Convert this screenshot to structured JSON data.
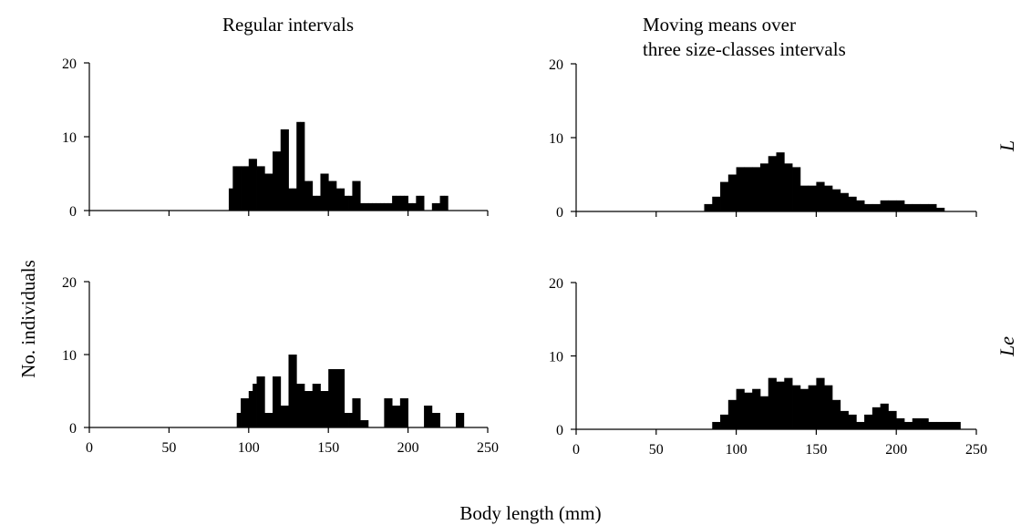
{
  "titles": {
    "left": "Regular intervals",
    "right_line1": "Moving means over",
    "right_line2": "three size-classes intervals"
  },
  "ylabel": "No. individuals",
  "xlabel": "Body length (mm)",
  "row_labels": [
    "L",
    "Le"
  ],
  "chart_data": [
    {
      "type": "bar",
      "panel": "top-left",
      "title": "Regular intervals",
      "xlabel": "Body length (mm)",
      "ylabel": "No. individuals",
      "xlim": [
        0,
        250
      ],
      "ylim": [
        0,
        20
      ],
      "xticks": [
        0,
        50,
        100,
        150,
        200,
        250
      ],
      "yticks": [
        0,
        10,
        20
      ],
      "bin_width": 2.5,
      "x": [
        87.5,
        90,
        92.5,
        95,
        97.5,
        100,
        102.5,
        105,
        107.5,
        110,
        112.5,
        115,
        117.5,
        120,
        122.5,
        125,
        127.5,
        130,
        132.5,
        135,
        137.5,
        140,
        142.5,
        145,
        147.5,
        150,
        152.5,
        155,
        157.5,
        160,
        162.5,
        165,
        167.5,
        170,
        172.5,
        175,
        177.5,
        180,
        182.5,
        185,
        187.5,
        190,
        192.5,
        195,
        197.5,
        200,
        202.5,
        205,
        207.5,
        210,
        212.5,
        215,
        217.5,
        220,
        222.5
      ],
      "values": [
        3,
        6,
        6,
        6,
        6,
        7,
        7,
        6,
        6,
        5,
        5,
        8,
        8,
        11,
        11,
        3,
        3,
        12,
        12,
        4,
        4,
        2,
        2,
        5,
        5,
        4,
        4,
        3,
        3,
        2,
        2,
        4,
        4,
        1,
        1,
        1,
        1,
        1,
        1,
        1,
        1,
        2,
        2,
        2,
        2,
        1,
        1,
        2,
        2,
        0,
        0,
        1,
        1,
        2,
        2
      ]
    },
    {
      "type": "bar",
      "panel": "top-right",
      "title": "Moving means over three size-classes intervals",
      "xlim": [
        0,
        250
      ],
      "ylim": [
        0,
        20
      ],
      "xticks": [
        0,
        50,
        100,
        150,
        200,
        250
      ],
      "yticks": [
        0,
        10,
        20
      ],
      "bin_width": 5,
      "x": [
        80,
        85,
        90,
        95,
        100,
        105,
        110,
        115,
        120,
        125,
        130,
        135,
        140,
        145,
        150,
        155,
        160,
        165,
        170,
        175,
        180,
        185,
        190,
        195,
        200,
        205,
        210,
        215,
        220,
        225
      ],
      "values": [
        1,
        2,
        4,
        5,
        6,
        6,
        6,
        6.5,
        7.5,
        8,
        6.5,
        6,
        3.5,
        3.5,
        4,
        3.5,
        3,
        2.5,
        2,
        1.5,
        1,
        1,
        1.5,
        1.5,
        1.5,
        1,
        1,
        1,
        1,
        0.5
      ]
    },
    {
      "type": "bar",
      "panel": "bottom-left",
      "xlim": [
        0,
        250
      ],
      "ylim": [
        0,
        20
      ],
      "xticks": [
        0,
        50,
        100,
        150,
        200,
        250
      ],
      "yticks": [
        0,
        10,
        20
      ],
      "bin_width": 2.5,
      "x": [
        92.5,
        95,
        97.5,
        100,
        102.5,
        105,
        107.5,
        110,
        112.5,
        115,
        117.5,
        120,
        122.5,
        125,
        127.5,
        130,
        132.5,
        135,
        137.5,
        140,
        142.5,
        145,
        147.5,
        150,
        152.5,
        155,
        157.5,
        160,
        162.5,
        165,
        167.5,
        170,
        172.5,
        175,
        177.5,
        180,
        182.5,
        185,
        187.5,
        190,
        192.5,
        195,
        197.5,
        200,
        202.5,
        205,
        207.5,
        210,
        212.5,
        215,
        217.5,
        220,
        222.5,
        225,
        227.5,
        230,
        232.5
      ],
      "values": [
        2,
        4,
        4,
        5,
        6,
        7,
        7,
        2,
        2,
        7,
        7,
        3,
        3,
        10,
        10,
        6,
        6,
        5,
        5,
        6,
        6,
        5,
        5,
        8,
        8,
        8,
        8,
        2,
        2,
        4,
        4,
        1,
        1,
        0,
        0,
        0,
        0,
        4,
        4,
        3,
        3,
        4,
        4,
        0,
        0,
        0,
        0,
        3,
        3,
        2,
        2,
        0,
        0,
        0,
        0,
        2,
        2
      ]
    },
    {
      "type": "bar",
      "panel": "bottom-right",
      "xlim": [
        0,
        250
      ],
      "ylim": [
        0,
        20
      ],
      "xticks": [
        0,
        50,
        100,
        150,
        200,
        250
      ],
      "yticks": [
        0,
        10,
        20
      ],
      "bin_width": 5,
      "x": [
        85,
        90,
        95,
        100,
        105,
        110,
        115,
        120,
        125,
        130,
        135,
        140,
        145,
        150,
        155,
        160,
        165,
        170,
        175,
        180,
        185,
        190,
        195,
        200,
        205,
        210,
        215,
        220,
        225,
        230,
        235
      ],
      "values": [
        1,
        2,
        4,
        5.5,
        5,
        5.5,
        4.5,
        7,
        6.5,
        7,
        6,
        5.5,
        6,
        7,
        6,
        4,
        2.5,
        2,
        1,
        2,
        3,
        3.5,
        2.5,
        1.5,
        1,
        1.5,
        1.5,
        1,
        1,
        1,
        1
      ]
    }
  ]
}
